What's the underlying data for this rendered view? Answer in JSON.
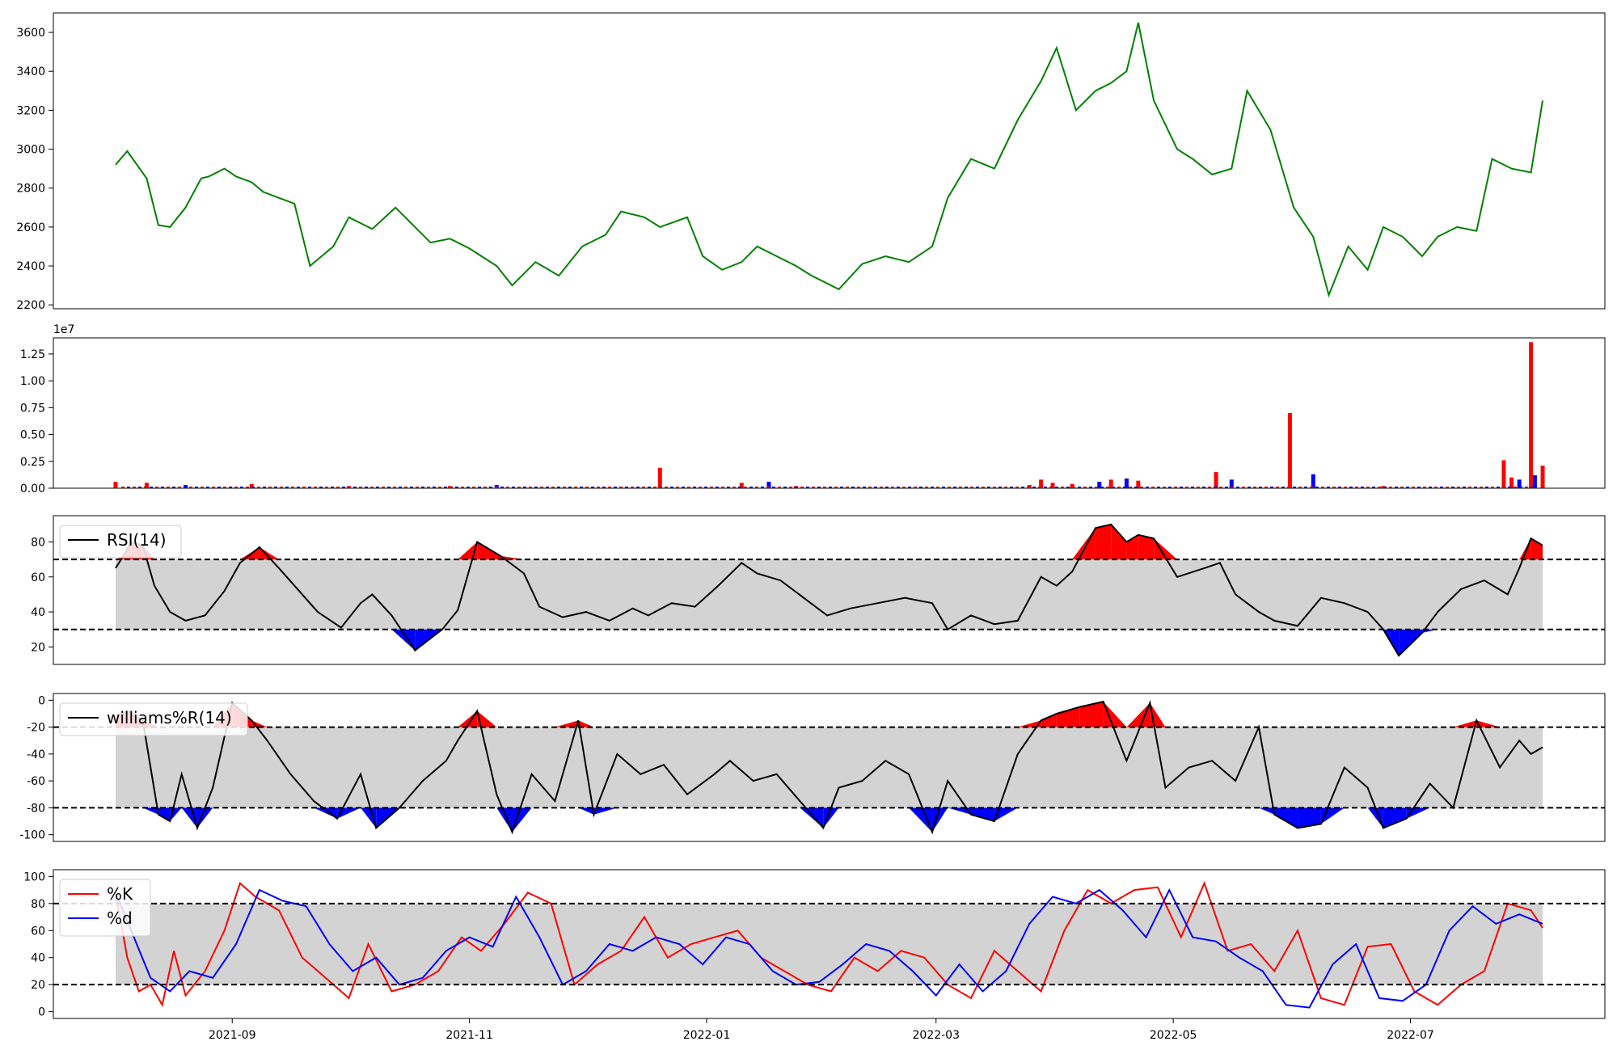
{
  "colors": {
    "price": "#008000",
    "up": "#ff0000",
    "down": "#0000ff",
    "band": "#d3d3d3",
    "line": "#000000",
    "k": "#ff0000",
    "d": "#0000ff"
  },
  "x_ticks": [
    "2021-09",
    "2021-11",
    "2022-01",
    "2022-03",
    "2022-05",
    "2022-07"
  ],
  "chart_data": [
    {
      "type": "line",
      "panel": "price",
      "series": [
        {
          "color": "#008000",
          "x": [
            "2021-08-02",
            "2021-08-05",
            "2021-08-10",
            "2021-08-13",
            "2021-08-16",
            "2021-08-20",
            "2021-08-24",
            "2021-08-26",
            "2021-08-30",
            "2021-09-02",
            "2021-09-06",
            "2021-09-09",
            "2021-09-13",
            "2021-09-17",
            "2021-09-21",
            "2021-09-27",
            "2021-10-01",
            "2021-10-05",
            "2021-10-07",
            "2021-10-13",
            "2021-10-18",
            "2021-10-22",
            "2021-10-27",
            "2021-11-01",
            "2021-11-08",
            "2021-11-12",
            "2021-11-18",
            "2021-11-24",
            "2021-11-30",
            "2021-12-06",
            "2021-12-10",
            "2021-12-16",
            "2021-12-20",
            "2021-12-27",
            "2021-12-31",
            "2022-01-05",
            "2022-01-10",
            "2022-01-14",
            "2022-01-19",
            "2022-01-24",
            "2022-01-28",
            "2022-02-04",
            "2022-02-10",
            "2022-02-16",
            "2022-02-22",
            "2022-02-28",
            "2022-03-04",
            "2022-03-10",
            "2022-03-16",
            "2022-03-22",
            "2022-03-28",
            "2022-04-01",
            "2022-04-06",
            "2022-04-11",
            "2022-04-15",
            "2022-04-19",
            "2022-04-22",
            "2022-04-26",
            "2022-05-02",
            "2022-05-06",
            "2022-05-11",
            "2022-05-16",
            "2022-05-20",
            "2022-05-26",
            "2022-06-01",
            "2022-06-06",
            "2022-06-10",
            "2022-06-15",
            "2022-06-20",
            "2022-06-24",
            "2022-06-29",
            "2022-07-04",
            "2022-07-08",
            "2022-07-13",
            "2022-07-18",
            "2022-07-22",
            "2022-07-27",
            "2022-08-01",
            "2022-08-04"
          ],
          "values": [
            2920,
            2990,
            2850,
            2610,
            2600,
            2700,
            2850,
            2860,
            2900,
            2860,
            2830,
            2780,
            2750,
            2720,
            2400,
            2500,
            2650,
            2610,
            2590,
            2700,
            2600,
            2520,
            2540,
            2490,
            2400,
            2300,
            2420,
            2350,
            2500,
            2560,
            2680,
            2650,
            2600,
            2650,
            2450,
            2380,
            2420,
            2500,
            2450,
            2400,
            2350,
            2280,
            2410,
            2450,
            2420,
            2500,
            2750,
            2950,
            2900,
            3150,
            3350,
            3520,
            3200,
            3300,
            3340,
            3400,
            3650,
            3250,
            3000,
            2950,
            2870,
            2900,
            3300,
            3100,
            2700,
            2550,
            2250,
            2500,
            2380,
            2600,
            2550,
            2450,
            2550,
            2600,
            2580,
            2950,
            2900,
            2880,
            3250
          ]
        }
      ],
      "ylim": [
        2180,
        3700
      ],
      "yticks": [
        2200,
        2400,
        2600,
        2800,
        3000,
        3200,
        3400,
        3600
      ]
    },
    {
      "type": "bar",
      "panel": "volume",
      "offset_label": "1e7",
      "ylim": [
        0,
        1.4
      ],
      "yticks": [
        "0.00",
        "0.25",
        "0.50",
        "0.75",
        "1.00",
        "1.25"
      ],
      "x": [
        "2021-08-02",
        "2021-08-10",
        "2021-08-20",
        "2021-09-06",
        "2021-10-01",
        "2021-10-27",
        "2021-11-08",
        "2021-12-20",
        "2022-01-10",
        "2022-01-17",
        "2022-01-24",
        "2022-03-25",
        "2022-03-28",
        "2022-03-31",
        "2022-04-05",
        "2022-04-12",
        "2022-04-15",
        "2022-04-19",
        "2022-04-22",
        "2022-05-12",
        "2022-05-16",
        "2022-05-31",
        "2022-06-06",
        "2022-06-24",
        "2022-07-25",
        "2022-07-27",
        "2022-07-29",
        "2022-08-01",
        "2022-08-02",
        "2022-08-04"
      ],
      "values": [
        0.06,
        0.05,
        0.03,
        0.04,
        0.02,
        0.02,
        0.03,
        0.19,
        0.05,
        0.06,
        0.02,
        0.03,
        0.08,
        0.05,
        0.04,
        0.06,
        0.08,
        0.09,
        0.07,
        0.15,
        0.08,
        0.7,
        0.13,
        0.02,
        0.26,
        0.1,
        0.08,
        1.36,
        0.12,
        0.21
      ],
      "up": [
        true,
        true,
        false,
        true,
        true,
        true,
        false,
        true,
        true,
        false,
        true,
        true,
        true,
        true,
        true,
        false,
        true,
        false,
        true,
        true,
        false,
        true,
        false,
        true,
        true,
        true,
        false,
        true,
        false,
        true
      ]
    },
    {
      "type": "line",
      "panel": "rsi",
      "series": [
        {
          "name": "RSI(14)",
          "x": [
            "2021-08-02",
            "2021-08-04",
            "2021-08-06",
            "2021-08-09",
            "2021-08-12",
            "2021-08-16",
            "2021-08-20",
            "2021-08-25",
            "2021-08-30",
            "2021-09-03",
            "2021-09-08",
            "2021-09-13",
            "2021-09-17",
            "2021-09-23",
            "2021-09-29",
            "2021-10-04",
            "2021-10-07",
            "2021-10-12",
            "2021-10-18",
            "2021-10-25",
            "2021-10-29",
            "2021-11-03",
            "2021-11-09",
            "2021-11-15",
            "2021-11-19",
            "2021-11-25",
            "2021-12-01",
            "2021-12-07",
            "2021-12-13",
            "2021-12-17",
            "2021-12-23",
            "2021-12-29",
            "2022-01-04",
            "2022-01-10",
            "2022-01-14",
            "2022-01-20",
            "2022-01-26",
            "2022-02-01",
            "2022-02-07",
            "2022-02-14",
            "2022-02-21",
            "2022-02-28",
            "2022-03-04",
            "2022-03-10",
            "2022-03-16",
            "2022-03-22",
            "2022-03-28",
            "2022-04-01",
            "2022-04-05",
            "2022-04-11",
            "2022-04-15",
            "2022-04-19",
            "2022-04-22",
            "2022-04-26",
            "2022-05-02",
            "2022-05-09",
            "2022-05-13",
            "2022-05-17",
            "2022-05-23",
            "2022-05-27",
            "2022-06-02",
            "2022-06-08",
            "2022-06-14",
            "2022-06-20",
            "2022-06-24",
            "2022-06-28",
            "2022-07-04",
            "2022-07-08",
            "2022-07-14",
            "2022-07-20",
            "2022-07-26",
            "2022-07-29",
            "2022-08-01",
            "2022-08-04"
          ],
          "values": [
            65,
            72,
            80,
            78,
            55,
            40,
            35,
            38,
            52,
            68,
            77,
            65,
            55,
            40,
            31,
            45,
            50,
            38,
            18,
            30,
            41,
            80,
            72,
            62,
            43,
            37,
            40,
            35,
            42,
            38,
            45,
            43,
            55,
            68,
            62,
            58,
            48,
            38,
            42,
            45,
            48,
            45,
            30,
            38,
            33,
            35,
            60,
            55,
            63,
            88,
            90,
            80,
            84,
            82,
            60,
            65,
            68,
            50,
            40,
            35,
            32,
            48,
            45,
            40,
            30,
            15,
            28,
            40,
            53,
            58,
            50,
            65,
            82,
            78
          ]
        }
      ],
      "ylim": [
        10,
        95
      ],
      "yticks": [
        20,
        40,
        60,
        80
      ],
      "upper": 70,
      "lower": 30
    },
    {
      "type": "line",
      "panel": "williams",
      "series": [
        {
          "name": "williams%R(14)",
          "x": [
            "2021-08-02",
            "2021-08-05",
            "2021-08-09",
            "2021-08-13",
            "2021-08-16",
            "2021-08-19",
            "2021-08-23",
            "2021-08-27",
            "2021-09-01",
            "2021-09-06",
            "2021-09-10",
            "2021-09-16",
            "2021-09-22",
            "2021-09-28",
            "2021-10-04",
            "2021-10-08",
            "2021-10-14",
            "2021-10-20",
            "2021-10-26",
            "2021-10-29",
            "2021-11-03",
            "2021-11-08",
            "2021-11-12",
            "2021-11-17",
            "2021-11-23",
            "2021-11-29",
            "2021-12-03",
            "2021-12-09",
            "2021-12-15",
            "2021-12-21",
            "2021-12-27",
            "2022-01-03",
            "2022-01-07",
            "2022-01-13",
            "2022-01-19",
            "2022-01-25",
            "2022-01-31",
            "2022-02-04",
            "2022-02-10",
            "2022-02-16",
            "2022-02-22",
            "2022-02-28",
            "2022-03-04",
            "2022-03-10",
            "2022-03-16",
            "2022-03-22",
            "2022-03-28",
            "2022-04-01",
            "2022-04-07",
            "2022-04-13",
            "2022-04-19",
            "2022-04-25",
            "2022-04-29",
            "2022-05-05",
            "2022-05-11",
            "2022-05-17",
            "2022-05-23",
            "2022-05-27",
            "2022-06-02",
            "2022-06-08",
            "2022-06-14",
            "2022-06-20",
            "2022-06-24",
            "2022-06-30",
            "2022-07-06",
            "2022-07-12",
            "2022-07-18",
            "2022-07-24",
            "2022-07-29",
            "2022-08-01",
            "2022-08-04"
          ],
          "values": [
            -12,
            -8,
            -15,
            -85,
            -90,
            -55,
            -95,
            -65,
            -2,
            -15,
            -30,
            -55,
            -75,
            -88,
            -55,
            -95,
            -80,
            -60,
            -45,
            -30,
            -8,
            -70,
            -98,
            -55,
            -75,
            -15,
            -85,
            -40,
            -55,
            -48,
            -70,
            -55,
            -45,
            -60,
            -55,
            -75,
            -95,
            -65,
            -60,
            -45,
            -55,
            -98,
            -60,
            -85,
            -90,
            -40,
            -15,
            -10,
            -5,
            -1,
            -45,
            -2,
            -65,
            -50,
            -45,
            -60,
            -20,
            -85,
            -95,
            -92,
            -50,
            -65,
            -95,
            -88,
            -62,
            -80,
            -15,
            -50,
            -30,
            -40,
            -35
          ]
        }
      ],
      "ylim": [
        -105,
        5
      ],
      "yticks": [
        0,
        -20,
        -40,
        -60,
        -80,
        -100
      ],
      "upper": -20,
      "lower": -80
    },
    {
      "type": "line",
      "panel": "stochastic",
      "series": [
        {
          "name": "%K",
          "color": "#ff0000",
          "x": [
            "2021-08-02",
            "2021-08-05",
            "2021-08-08",
            "2021-08-11",
            "2021-08-14",
            "2021-08-17",
            "2021-08-20",
            "2021-08-25",
            "2021-08-30",
            "2021-09-03",
            "2021-09-07",
            "2021-09-13",
            "2021-09-19",
            "2021-09-25",
            "2021-10-01",
            "2021-10-06",
            "2021-10-12",
            "2021-10-18",
            "2021-10-24",
            "2021-10-30",
            "2021-11-04",
            "2021-11-10",
            "2021-11-16",
            "2021-11-22",
            "2021-11-28",
            "2021-12-04",
            "2021-12-10",
            "2021-12-16",
            "2021-12-22",
            "2021-12-28",
            "2022-01-03",
            "2022-01-09",
            "2022-01-15",
            "2022-01-21",
            "2022-01-27",
            "2022-02-02",
            "2022-02-08",
            "2022-02-14",
            "2022-02-20",
            "2022-02-26",
            "2022-03-04",
            "2022-03-10",
            "2022-03-16",
            "2022-03-22",
            "2022-03-28",
            "2022-04-03",
            "2022-04-09",
            "2022-04-15",
            "2022-04-21",
            "2022-04-27",
            "2022-05-03",
            "2022-05-09",
            "2022-05-15",
            "2022-05-21",
            "2022-05-27",
            "2022-06-02",
            "2022-06-08",
            "2022-06-14",
            "2022-06-20",
            "2022-06-26",
            "2022-07-02",
            "2022-07-08",
            "2022-07-14",
            "2022-07-20",
            "2022-07-26",
            "2022-08-01",
            "2022-08-04"
          ],
          "values": [
            88,
            40,
            15,
            20,
            5,
            45,
            12,
            30,
            60,
            95,
            85,
            75,
            40,
            25,
            10,
            50,
            15,
            20,
            30,
            55,
            45,
            65,
            88,
            80,
            20,
            35,
            45,
            70,
            40,
            50,
            55,
            60,
            40,
            30,
            20,
            15,
            40,
            30,
            45,
            40,
            20,
            10,
            45,
            30,
            15,
            60,
            90,
            80,
            90,
            92,
            55,
            95,
            45,
            50,
            30,
            60,
            10,
            5,
            48,
            50,
            15,
            5,
            20,
            30,
            80,
            75,
            62
          ]
        },
        {
          "name": "%d",
          "color": "#0000ff",
          "x": [
            "2021-08-02",
            "2021-08-06",
            "2021-08-11",
            "2021-08-16",
            "2021-08-21",
            "2021-08-27",
            "2021-09-02",
            "2021-09-08",
            "2021-09-14",
            "2021-09-20",
            "2021-09-26",
            "2021-10-02",
            "2021-10-08",
            "2021-10-14",
            "2021-10-20",
            "2021-10-26",
            "2021-11-01",
            "2021-11-07",
            "2021-11-13",
            "2021-11-19",
            "2021-11-25",
            "2021-12-01",
            "2021-12-07",
            "2021-12-13",
            "2021-12-19",
            "2021-12-25",
            "2021-12-31",
            "2022-01-06",
            "2022-01-12",
            "2022-01-18",
            "2022-01-24",
            "2022-01-30",
            "2022-02-05",
            "2022-02-11",
            "2022-02-17",
            "2022-02-23",
            "2022-03-01",
            "2022-03-07",
            "2022-03-13",
            "2022-03-19",
            "2022-03-25",
            "2022-03-31",
            "2022-04-06",
            "2022-04-12",
            "2022-04-18",
            "2022-04-24",
            "2022-04-30",
            "2022-05-06",
            "2022-05-12",
            "2022-05-18",
            "2022-05-24",
            "2022-05-30",
            "2022-06-05",
            "2022-06-11",
            "2022-06-17",
            "2022-06-23",
            "2022-06-29",
            "2022-07-05",
            "2022-07-11",
            "2022-07-17",
            "2022-07-23",
            "2022-07-29",
            "2022-08-04"
          ],
          "values": [
            88,
            60,
            25,
            15,
            30,
            25,
            50,
            90,
            82,
            78,
            50,
            30,
            40,
            20,
            25,
            45,
            55,
            48,
            85,
            55,
            20,
            30,
            50,
            45,
            55,
            50,
            35,
            55,
            50,
            30,
            20,
            22,
            35,
            50,
            45,
            30,
            12,
            35,
            15,
            30,
            65,
            85,
            80,
            90,
            75,
            55,
            90,
            55,
            52,
            40,
            30,
            5,
            3,
            35,
            50,
            10,
            8,
            20,
            60,
            78,
            65,
            72,
            65
          ]
        }
      ],
      "ylim": [
        -5,
        105
      ],
      "yticks": [
        0,
        20,
        40,
        60,
        80,
        100
      ],
      "upper": 80,
      "lower": 20
    }
  ]
}
